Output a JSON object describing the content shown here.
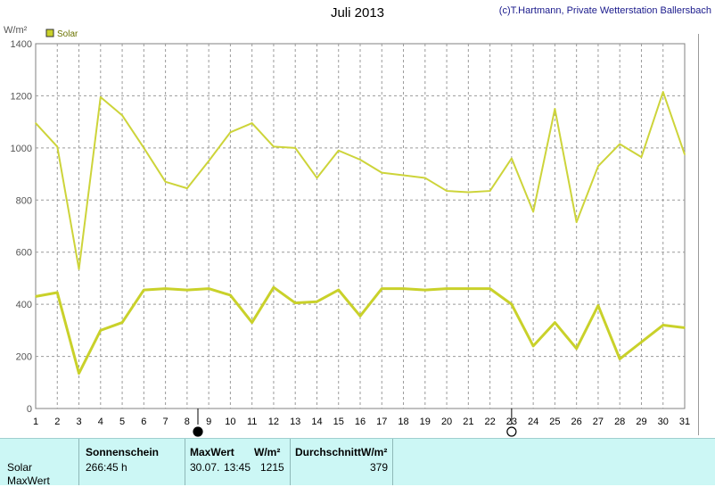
{
  "header": {
    "title": "Juli 2013",
    "credit": "(c)T.Hartmann, Private Wetterstation Ballersbach"
  },
  "chart_data": {
    "type": "line",
    "title": "Juli 2013",
    "ylabel": "W/m²",
    "ylim": [
      0,
      1400
    ],
    "yticks": [
      0,
      200,
      400,
      600,
      800,
      1000,
      1200,
      1400
    ],
    "x": [
      1,
      2,
      3,
      4,
      5,
      6,
      7,
      8,
      9,
      10,
      11,
      12,
      13,
      14,
      15,
      16,
      17,
      18,
      19,
      20,
      21,
      22,
      23,
      24,
      25,
      26,
      27,
      28,
      29,
      30,
      31
    ],
    "grid": true,
    "legend": "top-left",
    "series": [
      {
        "name": "Solar",
        "label": "max",
        "color": "#cdd43a",
        "values": [
          1095,
          1005,
          535,
          1195,
          1125,
          1000,
          870,
          845,
          950,
          1060,
          1095,
          1005,
          1000,
          885,
          990,
          955,
          905,
          895,
          885,
          835,
          830,
          835,
          960,
          755,
          1150,
          715,
          930,
          1015,
          965,
          1215,
          975
        ]
      },
      {
        "name": "Solar",
        "label": "avg",
        "color": "#c9d12a",
        "values": [
          430,
          445,
          135,
          300,
          330,
          455,
          460,
          455,
          460,
          435,
          330,
          465,
          405,
          410,
          455,
          355,
          460,
          460,
          455,
          460,
          460,
          460,
          400,
          240,
          330,
          230,
          395,
          190,
          255,
          320,
          310
        ]
      }
    ],
    "markers": [
      {
        "x": 8.5,
        "symbol": "filled-circle"
      },
      {
        "x": 23,
        "symbol": "open-circle"
      }
    ]
  },
  "legend": {
    "label": "Solar",
    "color": "#c9d12a"
  },
  "table": {
    "col_sonnenschein": "Sonnenschein",
    "col_maxwert": "MaxWert",
    "col_unit": "W/m²",
    "col_durchschnitt": "DurchschnittW/m²",
    "row_solar": "Solar",
    "row_maxwert": "MaxWert",
    "sonnenschein_value": "266:45 h",
    "max_date": "30.07.",
    "max_time": "13:45",
    "max_value": "1215",
    "avg_value": "379"
  }
}
